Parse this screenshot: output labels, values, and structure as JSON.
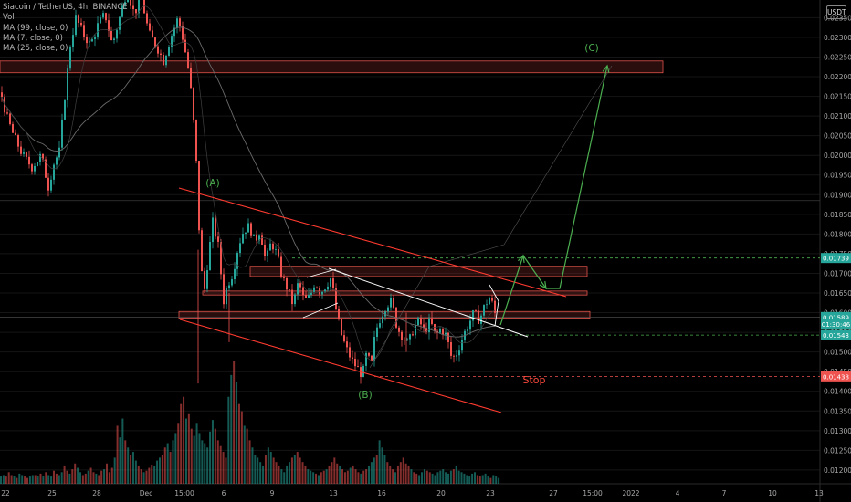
{
  "header": {
    "symbol_title": "Siacoin / TetherUS, 4h, BINANCE",
    "vol_label": "Vol",
    "ma_labels": [
      "MA (99, close, 0)",
      "MA (7, close, 0)",
      "MA (25, close, 0)"
    ],
    "currency_button": "USDT"
  },
  "colors": {
    "background": "#000000",
    "up_candle": "#26a69a",
    "down_candle": "#ef5350",
    "trendline_red": "#ff3b30",
    "trendline_white": "#ffffff",
    "projection_green": "#4caf50",
    "zone_border": "#e0534a",
    "stop_label": "#ff4a3d"
  },
  "price_axis": {
    "ticks": [
      "0.02350",
      "0.02300",
      "0.02250",
      "0.02200",
      "0.02150",
      "0.02100",
      "0.02050",
      "0.02000",
      "0.01950",
      "0.01900",
      "0.01850",
      "0.01800",
      "0.01750",
      "0.01700",
      "0.01650",
      "0.01600",
      "0.01550",
      "0.01500",
      "0.01450",
      "0.01400",
      "0.01350",
      "0.01300",
      "0.01250",
      "0.01200"
    ],
    "ylim": [
      0.01165,
      0.02395
    ],
    "tags": [
      {
        "text": "0.01739",
        "color": "#26a69a",
        "price": 0.01739
      },
      {
        "text": "0.01589",
        "color": "#26a69a",
        "price": 0.01589
      },
      {
        "text": "01:30:46",
        "color": "#26a69a",
        "price": 0.01571
      },
      {
        "text": "0.01543",
        "color": "#26a69a",
        "price": 0.01543
      },
      {
        "text": "0.01438",
        "color": "#ef5350",
        "price": 0.01438
      }
    ]
  },
  "time_axis": {
    "ticks": [
      "22",
      "25",
      "28",
      "Dec",
      "15:00",
      "6",
      "9",
      "13",
      "16",
      "20",
      "23",
      "27",
      "15:00",
      "2022",
      "4",
      "7",
      "10",
      "13"
    ]
  },
  "annotations": {
    "wave_a": "(A)",
    "wave_b": "(B)",
    "wave_c": "(C)",
    "stop": "Stop"
  },
  "chart_data": {
    "type": "candlestick",
    "symbol": "Siacoin / TetherUS",
    "interval": "4h",
    "exchange": "BINANCE",
    "ylim": [
      0.01165,
      0.02395
    ],
    "last_price": 0.01589,
    "countdown": "01:30:46",
    "levels": {
      "target_dashed": 0.01739,
      "support_dashed": 0.01543,
      "stop": 0.01438
    },
    "zones": [
      {
        "low": 0.0221,
        "high": 0.0224
      },
      {
        "low": 0.01692,
        "high": 0.01718
      },
      {
        "low": 0.01645,
        "high": 0.01655
      },
      {
        "low": 0.01586,
        "high": 0.01603
      }
    ],
    "waves": [
      {
        "label": "(A)",
        "price": 0.01885
      },
      {
        "label": "(B)",
        "price": 0.0142
      },
      {
        "label": "(C)",
        "price": 0.02245
      }
    ],
    "price_path": [
      [
        0,
        0.0216
      ],
      [
        6,
        0.021
      ],
      [
        14,
        0.0205
      ],
      [
        24,
        0.02
      ],
      [
        34,
        0.0197
      ],
      [
        44,
        0.02
      ],
      [
        52,
        0.0192
      ],
      [
        58,
        0.0198
      ],
      [
        64,
        0.0201
      ],
      [
        70,
        0.0215
      ],
      [
        76,
        0.0228
      ],
      [
        82,
        0.0235
      ],
      [
        90,
        0.0231
      ],
      [
        98,
        0.0228
      ],
      [
        106,
        0.0233
      ],
      [
        114,
        0.0236
      ],
      [
        122,
        0.0228
      ],
      [
        130,
        0.0235
      ],
      [
        138,
        0.0242
      ],
      [
        146,
        0.0236
      ],
      [
        154,
        0.024
      ],
      [
        162,
        0.0231
      ],
      [
        170,
        0.0228
      ],
      [
        178,
        0.0224
      ],
      [
        186,
        0.023
      ],
      [
        194,
        0.0235
      ],
      [
        200,
        0.0229
      ],
      [
        206,
        0.0221
      ],
      [
        210,
        0.0212
      ],
      [
        214,
        0.0198
      ],
      [
        218,
        0.0176
      ],
      [
        222,
        0.0164
      ],
      [
        226,
        0.0172
      ],
      [
        232,
        0.0183
      ],
      [
        238,
        0.0177
      ],
      [
        244,
        0.0163
      ],
      [
        248,
        0.0167
      ],
      [
        254,
        0.017
      ],
      [
        260,
        0.0177
      ],
      [
        266,
        0.0181
      ],
      [
        272,
        0.0182
      ],
      [
        278,
        0.0178
      ],
      [
        284,
        0.0181
      ],
      [
        290,
        0.0173
      ],
      [
        296,
        0.0178
      ],
      [
        302,
        0.0175
      ],
      [
        308,
        0.0169
      ],
      [
        314,
        0.0166
      ],
      [
        320,
        0.0162
      ],
      [
        326,
        0.0168
      ],
      [
        332,
        0.0163
      ],
      [
        338,
        0.0164
      ],
      [
        344,
        0.0168
      ],
      [
        350,
        0.0165
      ],
      [
        356,
        0.0167
      ],
      [
        362,
        0.0169
      ],
      [
        366,
        0.0162
      ],
      [
        372,
        0.0155
      ],
      [
        378,
        0.0151
      ],
      [
        384,
        0.0148
      ],
      [
        390,
        0.0146
      ],
      [
        396,
        0.0144
      ],
      [
        400,
        0.0149
      ],
      [
        406,
        0.0147
      ],
      [
        410,
        0.0155
      ],
      [
        416,
        0.0159
      ],
      [
        422,
        0.0162
      ],
      [
        428,
        0.0163
      ],
      [
        434,
        0.0156
      ],
      [
        440,
        0.0154
      ],
      [
        446,
        0.0152
      ],
      [
        452,
        0.0156
      ],
      [
        458,
        0.0158
      ],
      [
        464,
        0.0155
      ],
      [
        470,
        0.0158
      ],
      [
        476,
        0.0154
      ],
      [
        482,
        0.0156
      ],
      [
        488,
        0.0154
      ],
      [
        494,
        0.0148
      ],
      [
        500,
        0.015
      ],
      [
        506,
        0.0154
      ],
      [
        512,
        0.0157
      ],
      [
        518,
        0.016
      ],
      [
        524,
        0.0158
      ],
      [
        530,
        0.0162
      ],
      [
        536,
        0.0164
      ],
      [
        542,
        0.0159
      ]
    ],
    "volume": [
      5,
      6,
      5,
      8,
      6,
      5,
      4,
      7,
      6,
      5,
      4,
      5,
      6,
      6,
      5,
      7,
      5,
      8,
      6,
      5,
      9,
      7,
      6,
      8,
      12,
      9,
      7,
      10,
      14,
      11,
      8,
      6,
      7,
      9,
      11,
      8,
      7,
      6,
      9,
      10,
      14,
      8,
      11,
      18,
      40,
      32,
      45,
      30,
      25,
      20,
      22,
      16,
      12,
      10,
      8,
      9,
      11,
      13,
      12,
      16,
      18,
      20,
      25,
      28,
      22,
      30,
      35,
      42,
      55,
      60,
      45,
      48,
      38,
      33,
      42,
      35,
      30,
      28,
      25,
      36,
      44,
      38,
      30,
      26,
      22,
      18,
      60,
      75,
      85,
      70,
      55,
      50,
      40,
      38,
      30,
      25,
      20,
      18,
      15,
      12,
      20,
      25,
      22,
      18,
      15,
      12,
      10,
      8,
      12,
      15,
      18,
      20,
      22,
      18,
      15,
      12,
      10,
      9,
      8,
      7,
      6,
      8,
      9,
      10,
      12,
      15,
      18,
      14,
      12,
      10,
      8,
      9,
      11,
      12,
      10,
      8,
      7,
      9,
      10,
      12,
      15,
      18,
      20,
      30,
      25,
      20,
      15,
      12,
      10,
      8,
      12,
      15,
      18,
      14,
      12,
      10,
      8,
      7,
      6,
      8,
      10,
      9,
      8,
      7,
      6,
      8,
      9,
      10,
      8,
      7,
      9,
      10,
      12,
      9,
      8,
      7,
      6,
      5,
      7,
      8,
      6,
      5,
      6,
      7,
      5,
      4,
      6,
      5,
      4
    ]
  }
}
